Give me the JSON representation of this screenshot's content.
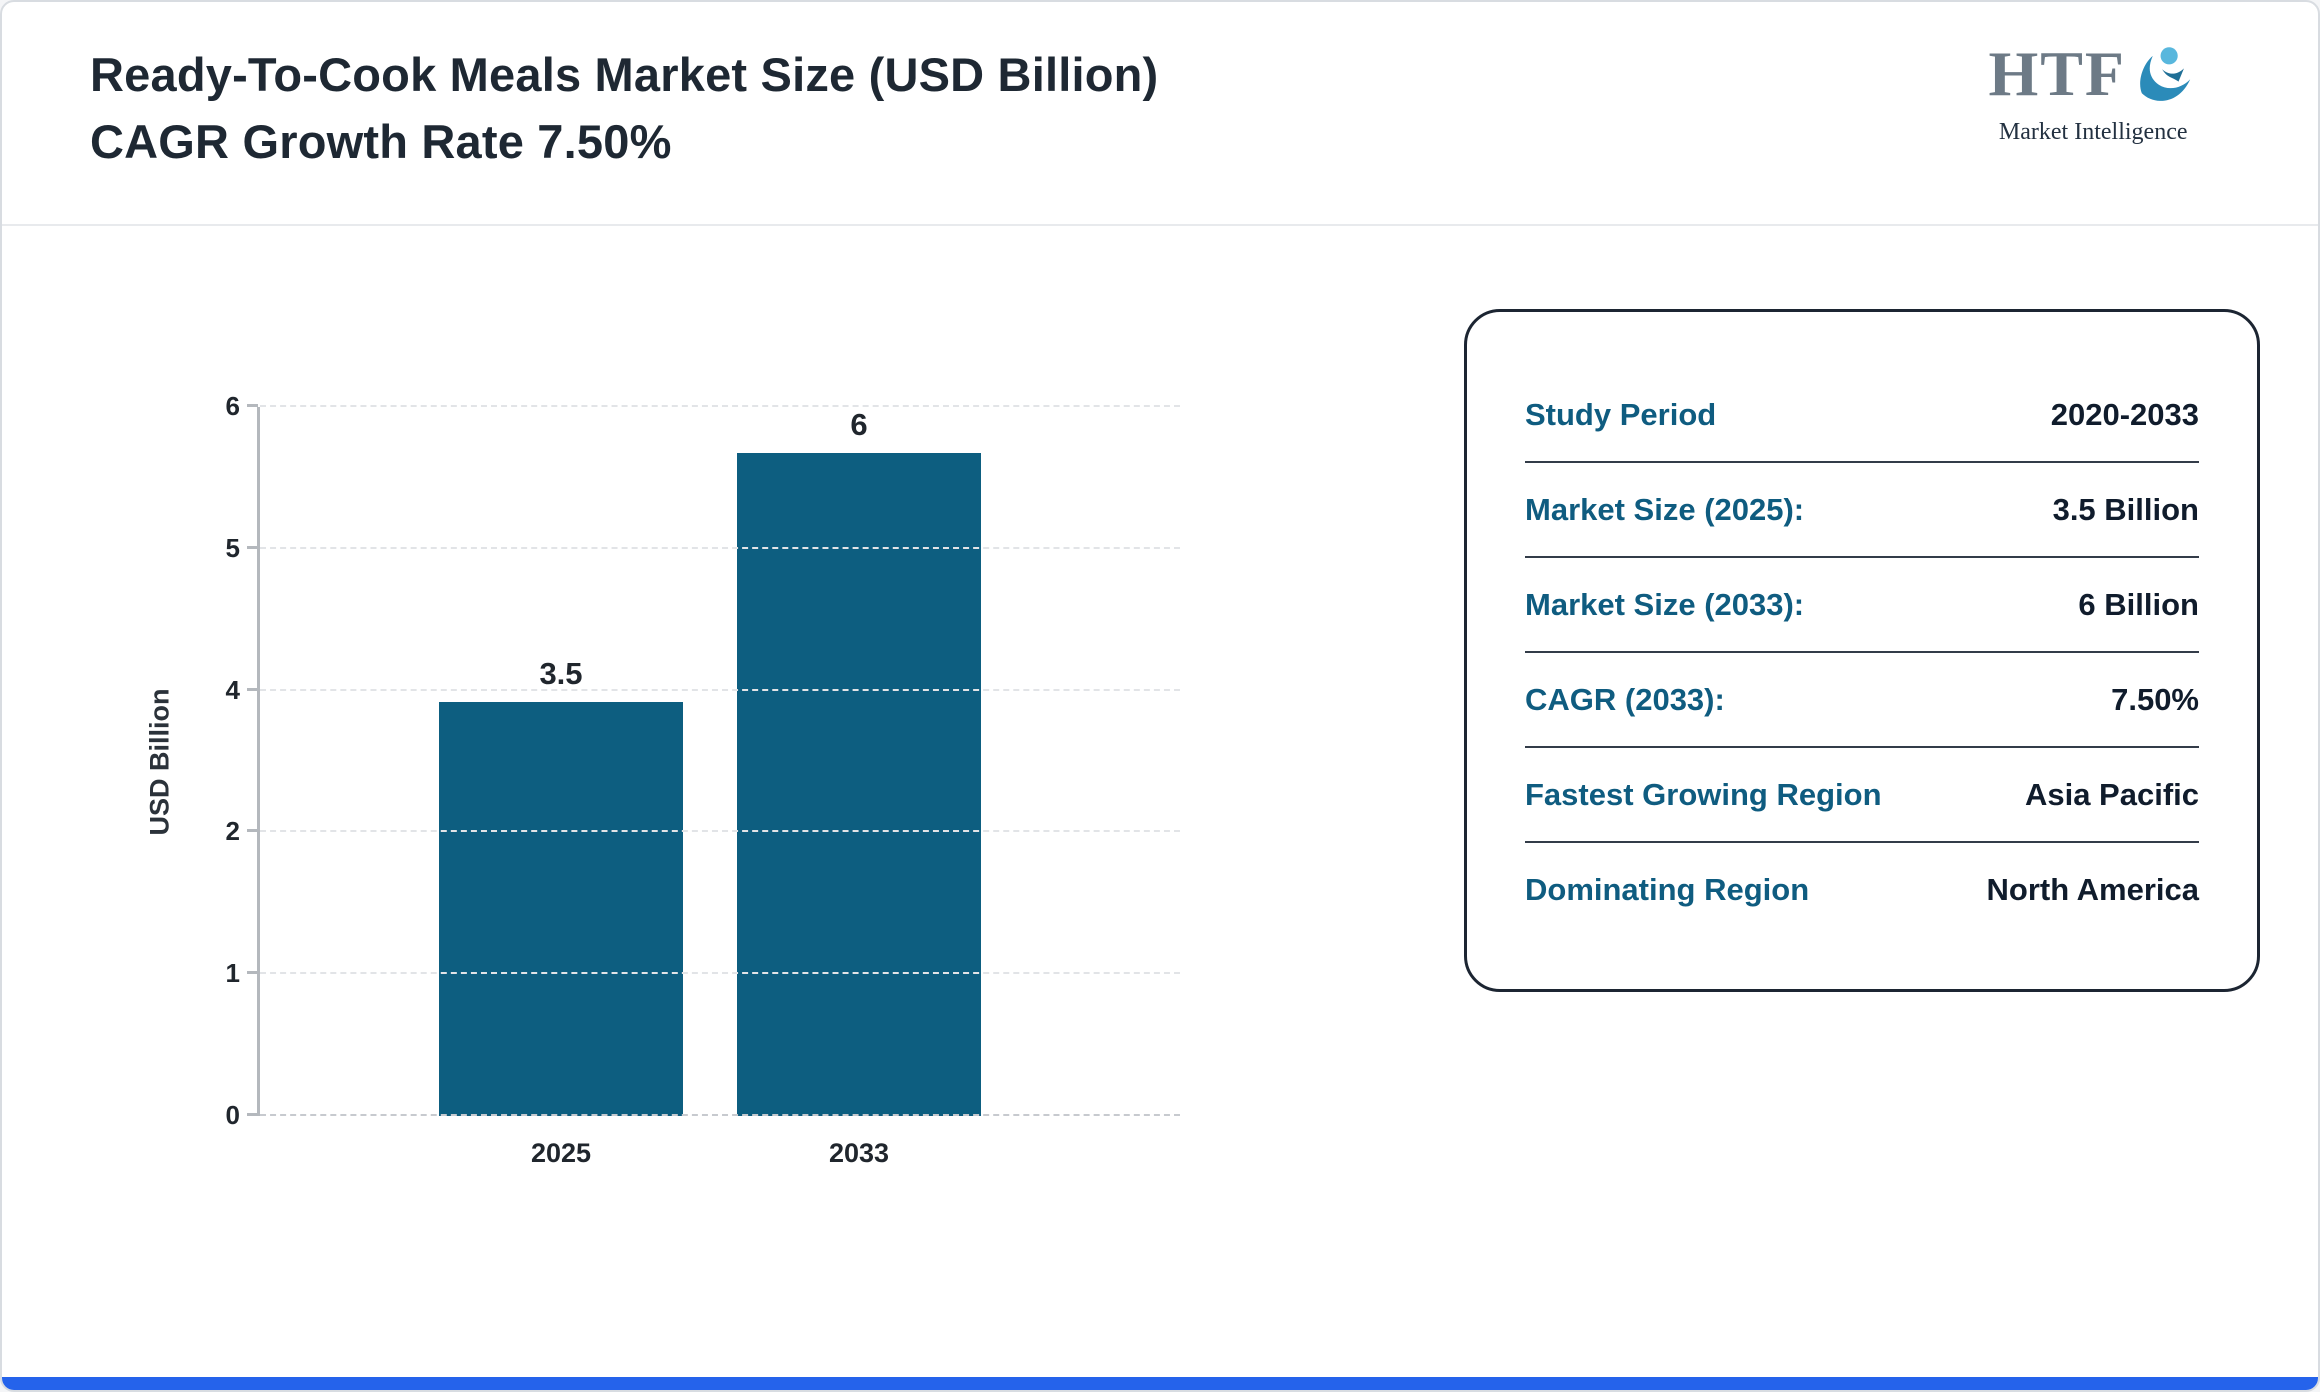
{
  "header": {
    "title_line1": "Ready-To-Cook Meals Market Size (USD Billion)",
    "title_line2": "CAGR Growth Rate 7.50%",
    "logo": {
      "text": "HTF",
      "subtext": "Market Intelligence"
    }
  },
  "chart_data": {
    "type": "bar",
    "title": "Ready-To-Cook Meals Market Size (USD Billion)",
    "categories": [
      "2025",
      "2033"
    ],
    "values": [
      3.5,
      6
    ],
    "bar_labels": [
      "3.5",
      "6"
    ],
    "xlabel": "",
    "ylabel": "USD Billion",
    "ylim": [
      0,
      6
    ],
    "yticks": [
      0,
      1,
      2,
      4,
      5,
      6
    ],
    "grid": "horizontal-dashed",
    "legend": "none",
    "bar_color": "#0d5e80"
  },
  "info_card": {
    "rows": [
      {
        "label": "Study Period",
        "value": "2020-2033"
      },
      {
        "label": "Market Size (2025):",
        "value": "3.5 Billion"
      },
      {
        "label": "Market Size (2033):",
        "value": "6 Billion"
      },
      {
        "label": "CAGR (2033):",
        "value": "7.50%"
      },
      {
        "label": "Fastest Growing Region",
        "value": "Asia Pacific"
      },
      {
        "label": "Dominating Region",
        "value": "North America"
      }
    ],
    "label_color": "#0f5c80",
    "value_color": "#101c2c"
  },
  "footer": {
    "accent_color": "#2563eb"
  }
}
